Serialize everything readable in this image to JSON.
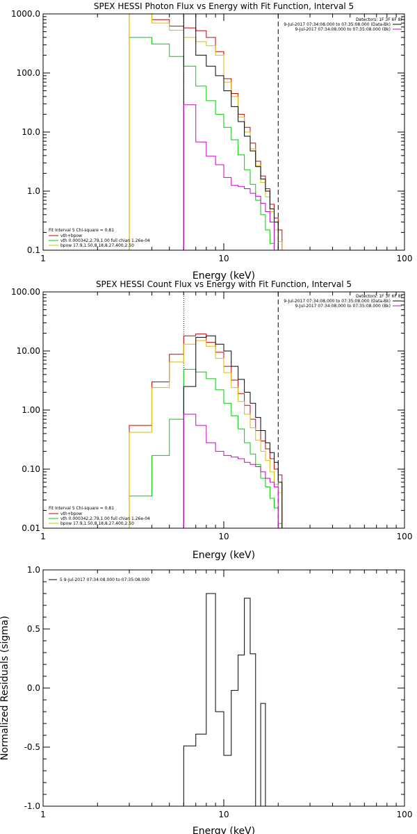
{
  "colors": {
    "data": "#000000",
    "total": "#cc0000",
    "vth": "#00cc00",
    "bpow": "#ddbb00",
    "bk": "#cc00cc"
  },
  "chart_data": [
    {
      "type": "line",
      "title": "SPEX HESSI Photon Flux vs Energy with Fit Function, Interval 5",
      "xlabel": "Energy (keV)",
      "ylabel": "",
      "xscale": "log",
      "yscale": "log",
      "xlim": [
        1,
        100
      ],
      "ylim": [
        0.1,
        1000
      ],
      "xticks": [
        {
          "v": 1,
          "label": "1"
        },
        {
          "v": 10,
          "label": "10"
        },
        {
          "v": 100,
          "label": "100"
        }
      ],
      "yticks": [
        {
          "v": 0.1,
          "label": "0.1"
        },
        {
          "v": 1,
          "label": "1.0"
        },
        {
          "v": 10,
          "label": "10.0"
        },
        {
          "v": 100,
          "label": "100.0"
        },
        {
          "v": 1000,
          "label": "1000.0"
        }
      ],
      "vlines": [
        {
          "x": 6,
          "style": "dotted"
        },
        {
          "x": 20,
          "style": "dashed"
        }
      ],
      "edges": [
        3,
        4,
        5,
        6,
        7,
        8,
        9,
        10,
        11,
        12,
        13,
        14,
        15,
        16,
        17,
        18,
        19,
        20,
        21
      ],
      "series": [
        {
          "name": "vth+bpow",
          "color": "#cc0000",
          "values": [
            1000,
            800,
            620,
            580,
            520,
            400,
            230,
            80,
            45,
            20,
            12,
            6.5,
            3.2,
            1.8,
            1.1,
            0.6,
            0.35,
            0.22
          ]
        },
        {
          "name": "vth 0.000342,2.79,1.00 full chian 1.26e-04",
          "color": "#00cc00",
          "values": [
            400,
            310,
            190,
            130,
            60,
            34,
            20,
            12,
            7.4,
            4.1,
            2.3,
            1.3,
            0.7,
            0.4,
            0.22,
            0.13,
            0.1,
            0.1
          ]
        },
        {
          "name": "bpow 17.9,1.50,8.18,8.27,400,2.50",
          "color": "#ddbb00",
          "values": [
            1000,
            700,
            530,
            400,
            340,
            290,
            200,
            70,
            40,
            18,
            10,
            5.2,
            2.7,
            1.4,
            0.8,
            0.45,
            0.22,
            0.14
          ]
        },
        {
          "name": "data",
          "color": "#000000",
          "start": 3,
          "values": [
            1000,
            200,
            130,
            90,
            50,
            27,
            15,
            8.5,
            4.8,
            2.6,
            1.6,
            1.0,
            0.5,
            0.3
          ]
        },
        {
          "name": "bk",
          "color": "#cc00cc",
          "start": 3,
          "values": [
            29,
            6.8,
            3.9,
            2.8,
            1.7,
            1.25,
            1.2,
            1.1,
            0.92,
            0.82,
            0.62,
            0.45,
            0.3,
            0.1
          ]
        }
      ],
      "legend": {
        "placement": "bottom-left",
        "header": "Fit Interval  5    Chi-square = 0.81",
        "entries": [
          {
            "label": "vth+bpow",
            "color": "#cc0000"
          },
          {
            "label": "vth 0.000342,2.79,1.00  full chian 1.26e-04",
            "color": "#00cc00"
          },
          {
            "label": "bpow 17.9,1.50,8.18,8.27,400,2.50",
            "color": "#ddbb00"
          }
        ]
      },
      "info": {
        "placement": "top-right",
        "lines": [
          {
            "text": "Detectors: 1F 3F 6F 8F",
            "color": null
          },
          {
            "text": "9-Jul-2017 07:34:08.000 to 07:35:08.000 (Data-Bk)",
            "color": "#000000"
          },
          {
            "text": "9-Jul-2017 07:34:08.000 to 07:35:08.000 (Bk)",
            "color": "#cc00cc"
          }
        ]
      }
    },
    {
      "type": "line",
      "title": "SPEX HESSI Count Flux vs Energy with Fit Function, Interval 5",
      "xlabel": "Energy (keV)",
      "ylabel": "",
      "xscale": "log",
      "yscale": "log",
      "xlim": [
        1,
        100
      ],
      "ylim": [
        0.01,
        100
      ],
      "xticks": [
        {
          "v": 1,
          "label": "1"
        },
        {
          "v": 10,
          "label": "10"
        },
        {
          "v": 100,
          "label": "100"
        }
      ],
      "yticks": [
        {
          "v": 0.01,
          "label": "0.01"
        },
        {
          "v": 0.1,
          "label": "0.10"
        },
        {
          "v": 1,
          "label": "1.00"
        },
        {
          "v": 10,
          "label": "10.00"
        },
        {
          "v": 100,
          "label": "100.00"
        }
      ],
      "vlines": [
        {
          "x": 6,
          "style": "dotted"
        },
        {
          "x": 20,
          "style": "dashed"
        }
      ],
      "edges": [
        3,
        4,
        5,
        6,
        7,
        8,
        9,
        10,
        11,
        12,
        13,
        14,
        15,
        16,
        17,
        18,
        19,
        20,
        21
      ],
      "series": [
        {
          "name": "vth+bpow",
          "color": "#cc0000",
          "values": [
            0.55,
            3.0,
            8.8,
            18,
            19.5,
            14,
            9.5,
            5.5,
            3.2,
            1.9,
            1.2,
            0.7,
            0.45,
            0.3,
            0.22,
            0.15,
            0.1,
            0.08
          ]
        },
        {
          "name": "vth 0.000342,2.79,1.00 full chian 1.26e-04",
          "color": "#00cc00",
          "values": [
            0.035,
            0.17,
            0.7,
            4.9,
            4.4,
            3.4,
            2.2,
            1.3,
            0.8,
            0.48,
            0.28,
            0.18,
            0.12,
            0.07,
            0.05,
            0.032,
            0.022,
            0.012
          ]
        },
        {
          "name": "bpow 17.9,1.50,8.18,8.27,400,2.50",
          "color": "#ddbb00",
          "values": [
            0.42,
            2.4,
            6.5,
            13,
            15,
            12,
            7.5,
            4.3,
            2.4,
            1.4,
            0.85,
            0.5,
            0.31,
            0.2,
            0.14,
            0.09,
            0.055,
            0.04
          ]
        },
        {
          "name": "data",
          "color": "#000000",
          "start": 3,
          "values": [
            2.5,
            17,
            18,
            13,
            10,
            5.5,
            3.3,
            2.0,
            1.3,
            0.75,
            0.45,
            0.28,
            0.19,
            0.13,
            0.06
          ]
        },
        {
          "name": "bk",
          "color": "#cc00cc",
          "start": 3,
          "values": [
            0.85,
            0.55,
            0.28,
            0.2,
            0.17,
            0.16,
            0.15,
            0.13,
            0.12,
            0.11,
            0.09,
            0.07,
            0.06,
            0.05,
            0.01
          ]
        }
      ],
      "legend": {
        "placement": "bottom-left",
        "header": "Fit Interval  5    Chi-square = 0.81",
        "entries": [
          {
            "label": "vth+bpow",
            "color": "#cc0000"
          },
          {
            "label": "vth 0.000342,2.79,1.00  full chian 1.26e-04",
            "color": "#00cc00"
          },
          {
            "label": "bpow 17.9,1.50,8.18,8.27,400,2.50",
            "color": "#ddbb00"
          }
        ]
      },
      "info": {
        "placement": "top-right",
        "lines": [
          {
            "text": "Detectors: 1F 3F 6F 8F",
            "color": null
          },
          {
            "text": "9-Jul-2017 07:34:08.000 to 07:35:08.000 (Data-Bk)",
            "color": "#000000"
          },
          {
            "text": "9-Jul-2017 07:34:08.000 to 07:35:08.000 (Bk)",
            "color": "#cc00cc"
          }
        ]
      }
    },
    {
      "type": "line",
      "title": "",
      "xlabel": "Energy (keV)",
      "ylabel": "Normalized Residuals (sigma)",
      "xscale": "log",
      "yscale": "linear",
      "xlim": [
        1,
        100
      ],
      "ylim": [
        -1.0,
        1.0
      ],
      "xticks": [
        {
          "v": 1,
          "label": "1"
        },
        {
          "v": 10,
          "label": "10"
        },
        {
          "v": 100,
          "label": "100"
        }
      ],
      "yticks": [
        {
          "v": -1.0,
          "label": "-1.0"
        },
        {
          "v": -0.5,
          "label": "-0.5"
        },
        {
          "v": 0.0,
          "label": "0.0"
        },
        {
          "v": 0.5,
          "label": "0.5"
        },
        {
          "v": 1.0,
          "label": "1.0"
        }
      ],
      "vlines": [],
      "edges": [
        6,
        7,
        8,
        9,
        10,
        11,
        12,
        13,
        14,
        15,
        16,
        17,
        18,
        19,
        20
      ],
      "series": [
        {
          "name": "5  9-Jul-2017 07:34:08.000 to 07:35:08.000",
          "color": "#000000",
          "start": 0,
          "values": [
            -0.49,
            -0.39,
            0.8,
            -0.2,
            -0.57,
            -0.02,
            0.28,
            0.76,
            0.29,
            -1.0,
            -0.13
          ]
        }
      ],
      "legend": {
        "placement": "top-left",
        "header": "",
        "entries": [
          {
            "label": "5  9-Jul-2017 07:34:08.000 to 07:35:08.000",
            "color": "#000000"
          }
        ]
      },
      "info": {
        "placement": "top-right",
        "lines": []
      }
    }
  ]
}
